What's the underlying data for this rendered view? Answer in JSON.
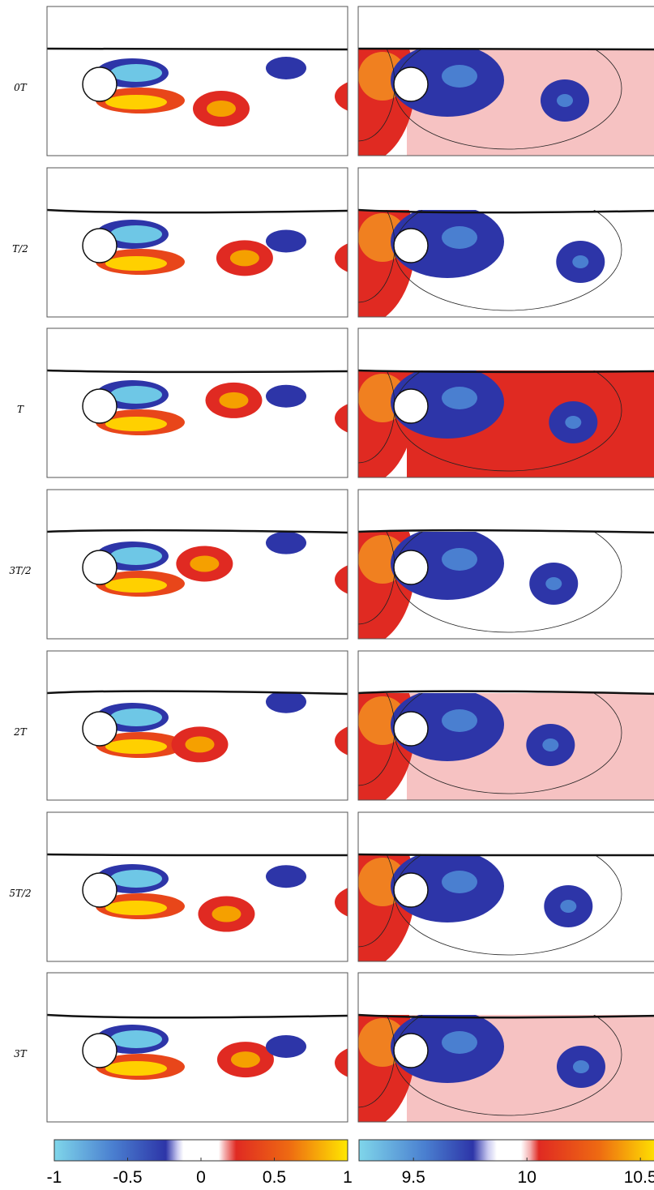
{
  "rows": [
    "0T",
    "T/2",
    "T",
    "3T/2",
    "2T",
    "5T/2",
    "3T"
  ],
  "colorbars": [
    {
      "lim": [
        -1,
        1
      ],
      "ticks": [
        -1,
        -0.5,
        0,
        0.5,
        1
      ]
    },
    {
      "lim": [
        9.26,
        10.56
      ],
      "ticks": [
        9.5,
        10,
        10.5
      ]
    }
  ]
}
